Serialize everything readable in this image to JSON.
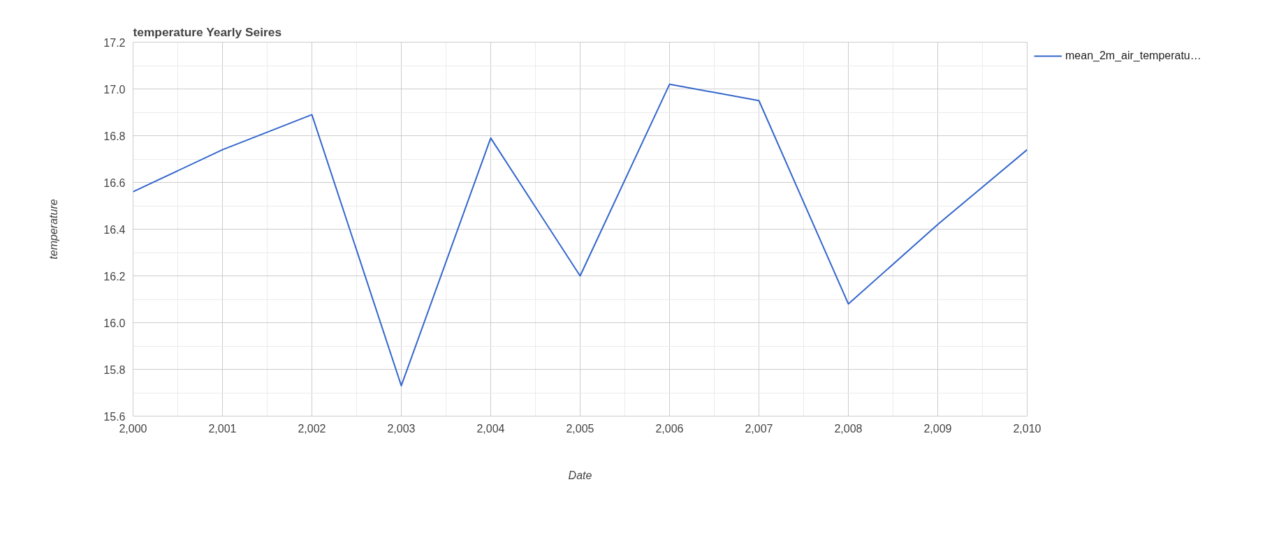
{
  "chart_data": {
    "type": "line",
    "title": "temperature Yearly Seires",
    "xlabel": "Date",
    "ylabel": "temperature",
    "x": [
      2000,
      2001,
      2002,
      2003,
      2004,
      2005,
      2006,
      2007,
      2008,
      2009,
      2010
    ],
    "series": [
      {
        "name": "mean_2m_air_temperatu…",
        "color": "#3366cc",
        "values": [
          16.56,
          16.74,
          16.89,
          15.73,
          16.79,
          16.2,
          17.02,
          16.95,
          16.08,
          16.42,
          16.74
        ]
      }
    ],
    "xlim": [
      2000,
      2010
    ],
    "xticks": [
      {
        "value": 2000,
        "label": "2,000"
      },
      {
        "value": 2001,
        "label": "2,001"
      },
      {
        "value": 2002,
        "label": "2,002"
      },
      {
        "value": 2003,
        "label": "2,003"
      },
      {
        "value": 2004,
        "label": "2,004"
      },
      {
        "value": 2005,
        "label": "2,005"
      },
      {
        "value": 2006,
        "label": "2,006"
      },
      {
        "value": 2007,
        "label": "2,007"
      },
      {
        "value": 2008,
        "label": "2,008"
      },
      {
        "value": 2009,
        "label": "2,009"
      },
      {
        "value": 2010,
        "label": "2,010"
      }
    ],
    "ylim": [
      15.6,
      17.2
    ],
    "yticks": [
      15.6,
      15.8,
      {
        "value": 16.0,
        "label": "16.0"
      },
      16.2,
      16.4,
      16.6,
      16.8,
      {
        "value": 17.0,
        "label": "17.0"
      },
      17.2
    ],
    "grid": true,
    "legend": "top right",
    "marker": "none",
    "line_style": "solid"
  }
}
